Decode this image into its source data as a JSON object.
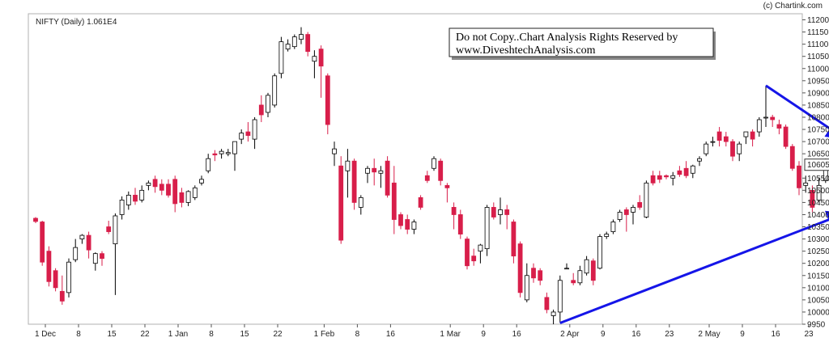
{
  "header": {
    "credit": "(c) Chartink.com",
    "title": "NIFTY (Daily) 1.061E4"
  },
  "watermark": {
    "line1": "Do not Copy..Chart Analysis Rights Reserved by",
    "line2": "www.DiveshtechAnalysis.com"
  },
  "colors": {
    "up_fill": "#ffffff",
    "up_border": "#000000",
    "down_fill": "#d81e4a",
    "arrow": "#1515e8",
    "last_price_box": "#ffffff"
  },
  "chart_data": {
    "type": "candlestick",
    "title": "NIFTY (Daily) 1.061E4",
    "ylim": [
      9950,
      11225
    ],
    "y_ticks": [
      9950,
      10000,
      10050,
      10100,
      10150,
      10200,
      10250,
      10300,
      10350,
      10400,
      10450,
      10500,
      10550,
      10650,
      10700,
      10750,
      10800,
      10850,
      10900,
      10950,
      11000,
      11050,
      11100,
      11150,
      11200
    ],
    "last_price_label": "10605",
    "x_ticks": [
      {
        "label": "1 Dec",
        "index": 0
      },
      {
        "label": "8",
        "index": 5
      },
      {
        "label": "15",
        "index": 10
      },
      {
        "label": "22",
        "index": 15
      },
      {
        "label": "1 Jan",
        "index": 20
      },
      {
        "label": "8",
        "index": 25
      },
      {
        "label": "15",
        "index": 30
      },
      {
        "label": "22",
        "index": 35
      },
      {
        "label": "1 Feb",
        "index": 42
      },
      {
        "label": "8",
        "index": 47
      },
      {
        "label": "16",
        "index": 52
      },
      {
        "label": "1 Mar",
        "index": 61
      },
      {
        "label": "9",
        "index": 66
      },
      {
        "label": "16",
        "index": 71
      },
      {
        "label": "2 Apr",
        "index": 79
      },
      {
        "label": "9",
        "index": 84
      },
      {
        "label": "16",
        "index": 89
      },
      {
        "label": "23",
        "index": 94
      },
      {
        "label": "2 May",
        "index": 100
      },
      {
        "label": "9",
        "index": 105
      },
      {
        "label": "16",
        "index": 110
      },
      {
        "label": "23",
        "index": 115
      }
    ],
    "candles": [
      {
        "o": 10385,
        "h": 10390,
        "l": 10365,
        "c": 10372
      },
      {
        "o": 10370,
        "h": 10375,
        "l": 10190,
        "c": 10205
      },
      {
        "o": 10250,
        "h": 10270,
        "l": 10105,
        "c": 10125
      },
      {
        "o": 10170,
        "h": 10180,
        "l": 10085,
        "c": 10100
      },
      {
        "o": 10085,
        "h": 10150,
        "l": 10030,
        "c": 10045
      },
      {
        "o": 10080,
        "h": 10220,
        "l": 10060,
        "c": 10205
      },
      {
        "o": 10215,
        "h": 10300,
        "l": 10205,
        "c": 10265
      },
      {
        "o": 10300,
        "h": 10320,
        "l": 10280,
        "c": 10315
      },
      {
        "o": 10315,
        "h": 10330,
        "l": 10220,
        "c": 10255
      },
      {
        "o": 10200,
        "h": 10245,
        "l": 10170,
        "c": 10240
      },
      {
        "o": 10240,
        "h": 10250,
        "l": 10190,
        "c": 10220
      },
      {
        "o": 10350,
        "h": 10375,
        "l": 10320,
        "c": 10330
      },
      {
        "o": 10280,
        "h": 10405,
        "l": 10070,
        "c": 10395
      },
      {
        "o": 10400,
        "h": 10475,
        "l": 10380,
        "c": 10460
      },
      {
        "o": 10440,
        "h": 10495,
        "l": 10420,
        "c": 10480
      },
      {
        "o": 10480,
        "h": 10510,
        "l": 10440,
        "c": 10455
      },
      {
        "o": 10460,
        "h": 10520,
        "l": 10450,
        "c": 10500
      },
      {
        "o": 10520,
        "h": 10540,
        "l": 10500,
        "c": 10530
      },
      {
        "o": 10545,
        "h": 10560,
        "l": 10490,
        "c": 10515
      },
      {
        "o": 10525,
        "h": 10545,
        "l": 10480,
        "c": 10500
      },
      {
        "o": 10525,
        "h": 10545,
        "l": 10470,
        "c": 10480
      },
      {
        "o": 10545,
        "h": 10560,
        "l": 10410,
        "c": 10445
      },
      {
        "o": 10490,
        "h": 10510,
        "l": 10430,
        "c": 10450
      },
      {
        "o": 10450,
        "h": 10500,
        "l": 10435,
        "c": 10495
      },
      {
        "o": 10470,
        "h": 10520,
        "l": 10460,
        "c": 10510
      },
      {
        "o": 10530,
        "h": 10560,
        "l": 10520,
        "c": 10545
      },
      {
        "o": 10580,
        "h": 10650,
        "l": 10570,
        "c": 10630
      },
      {
        "o": 10650,
        "h": 10665,
        "l": 10620,
        "c": 10645
      },
      {
        "o": 10650,
        "h": 10670,
        "l": 10630,
        "c": 10660
      },
      {
        "o": 10650,
        "h": 10670,
        "l": 10640,
        "c": 10655
      },
      {
        "o": 10650,
        "h": 10700,
        "l": 10580,
        "c": 10700
      },
      {
        "o": 10710,
        "h": 10750,
        "l": 10690,
        "c": 10735
      },
      {
        "o": 10740,
        "h": 10780,
        "l": 10700,
        "c": 10725
      },
      {
        "o": 10710,
        "h": 10800,
        "l": 10670,
        "c": 10790
      },
      {
        "o": 10850,
        "h": 10890,
        "l": 10780,
        "c": 10810
      },
      {
        "o": 10820,
        "h": 10900,
        "l": 10800,
        "c": 10890
      },
      {
        "o": 10850,
        "h": 10980,
        "l": 10840,
        "c": 10970
      },
      {
        "o": 10980,
        "h": 11130,
        "l": 10960,
        "c": 11110
      },
      {
        "o": 11080,
        "h": 11120,
        "l": 11070,
        "c": 11100
      },
      {
        "o": 11090,
        "h": 11140,
        "l": 11080,
        "c": 11130
      },
      {
        "o": 11120,
        "h": 11170,
        "l": 11100,
        "c": 11140
      },
      {
        "o": 11140,
        "h": 11150,
        "l": 11050,
        "c": 11070
      },
      {
        "o": 11030,
        "h": 11075,
        "l": 10960,
        "c": 11050
      },
      {
        "o": 11080,
        "h": 11095,
        "l": 10880,
        "c": 11010
      },
      {
        "o": 10970,
        "h": 10980,
        "l": 10730,
        "c": 10770
      },
      {
        "o": 10650,
        "h": 10700,
        "l": 10600,
        "c": 10670
      },
      {
        "o": 10600,
        "h": 10640,
        "l": 10280,
        "c": 10295
      },
      {
        "o": 10580,
        "h": 10670,
        "l": 10470,
        "c": 10620
      },
      {
        "o": 10620,
        "h": 10630,
        "l": 10420,
        "c": 10450
      },
      {
        "o": 10430,
        "h": 10480,
        "l": 10400,
        "c": 10470
      },
      {
        "o": 10570,
        "h": 10600,
        "l": 10530,
        "c": 10590
      },
      {
        "o": 10590,
        "h": 10630,
        "l": 10520,
        "c": 10575
      },
      {
        "o": 10570,
        "h": 10600,
        "l": 10510,
        "c": 10580
      },
      {
        "o": 10620,
        "h": 10640,
        "l": 10470,
        "c": 10480
      },
      {
        "o": 10530,
        "h": 10600,
        "l": 10320,
        "c": 10380
      },
      {
        "o": 10400,
        "h": 10410,
        "l": 10340,
        "c": 10355
      },
      {
        "o": 10380,
        "h": 10400,
        "l": 10320,
        "c": 10340
      },
      {
        "o": 10340,
        "h": 10380,
        "l": 10320,
        "c": 10370
      },
      {
        "o": 10470,
        "h": 10480,
        "l": 10420,
        "c": 10430
      },
      {
        "o": 10560,
        "h": 10580,
        "l": 10530,
        "c": 10540
      },
      {
        "o": 10590,
        "h": 10640,
        "l": 10580,
        "c": 10630
      },
      {
        "o": 10620,
        "h": 10630,
        "l": 10520,
        "c": 10540
      },
      {
        "o": 10520,
        "h": 10530,
        "l": 10450,
        "c": 10510
      },
      {
        "o": 10430,
        "h": 10450,
        "l": 10340,
        "c": 10400
      },
      {
        "o": 10400,
        "h": 10420,
        "l": 10300,
        "c": 10320
      },
      {
        "o": 10300,
        "h": 10310,
        "l": 10175,
        "c": 10190
      },
      {
        "o": 10230,
        "h": 10260,
        "l": 10190,
        "c": 10210
      },
      {
        "o": 10250,
        "h": 10280,
        "l": 10200,
        "c": 10275
      },
      {
        "o": 10260,
        "h": 10440,
        "l": 10230,
        "c": 10430
      },
      {
        "o": 10430,
        "h": 10450,
        "l": 10380,
        "c": 10390
      },
      {
        "o": 10400,
        "h": 10470,
        "l": 10360,
        "c": 10420
      },
      {
        "o": 10420,
        "h": 10440,
        "l": 10340,
        "c": 10400
      },
      {
        "o": 10370,
        "h": 10380,
        "l": 10200,
        "c": 10230
      },
      {
        "o": 10280,
        "h": 10290,
        "l": 10060,
        "c": 10080
      },
      {
        "o": 10050,
        "h": 10200,
        "l": 10040,
        "c": 10150
      },
      {
        "o": 10180,
        "h": 10200,
        "l": 10120,
        "c": 10140
      },
      {
        "o": 10170,
        "h": 10180,
        "l": 10110,
        "c": 10130
      },
      {
        "o": 10060,
        "h": 10080,
        "l": 9995,
        "c": 10010
      },
      {
        "o": 9985,
        "h": 10010,
        "l": 9950,
        "c": 10000
      },
      {
        "o": 10000,
        "h": 10150,
        "l": 9955,
        "c": 10130
      },
      {
        "o": 10180,
        "h": 10200,
        "l": 10180,
        "c": 10180
      },
      {
        "o": 10130,
        "h": 10160,
        "l": 10110,
        "c": 10120
      },
      {
        "o": 10120,
        "h": 10190,
        "l": 10110,
        "c": 10170
      },
      {
        "o": 10160,
        "h": 10230,
        "l": 10150,
        "c": 10215
      },
      {
        "o": 10210,
        "h": 10220,
        "l": 10110,
        "c": 10130
      },
      {
        "o": 10180,
        "h": 10320,
        "l": 10175,
        "c": 10310
      },
      {
        "o": 10310,
        "h": 10330,
        "l": 10300,
        "c": 10320
      },
      {
        "o": 10330,
        "h": 10380,
        "l": 10320,
        "c": 10370
      },
      {
        "o": 10380,
        "h": 10420,
        "l": 10370,
        "c": 10410
      },
      {
        "o": 10420,
        "h": 10430,
        "l": 10330,
        "c": 10400
      },
      {
        "o": 10410,
        "h": 10440,
        "l": 10360,
        "c": 10430
      },
      {
        "o": 10450,
        "h": 10480,
        "l": 10420,
        "c": 10430
      },
      {
        "o": 10390,
        "h": 10540,
        "l": 10385,
        "c": 10530
      },
      {
        "o": 10560,
        "h": 10580,
        "l": 10520,
        "c": 10530
      },
      {
        "o": 10560,
        "h": 10580,
        "l": 10530,
        "c": 10545
      },
      {
        "o": 10560,
        "h": 10565,
        "l": 10545,
        "c": 10555
      },
      {
        "o": 10550,
        "h": 10575,
        "l": 10520,
        "c": 10560
      },
      {
        "o": 10580,
        "h": 10600,
        "l": 10555,
        "c": 10565
      },
      {
        "o": 10590,
        "h": 10620,
        "l": 10550,
        "c": 10560
      },
      {
        "o": 10570,
        "h": 10605,
        "l": 10550,
        "c": 10600
      },
      {
        "o": 10620,
        "h": 10640,
        "l": 10600,
        "c": 10630
      },
      {
        "o": 10650,
        "h": 10700,
        "l": 10640,
        "c": 10690
      },
      {
        "o": 10700,
        "h": 10720,
        "l": 10680,
        "c": 10700
      },
      {
        "o": 10740,
        "h": 10760,
        "l": 10680,
        "c": 10705
      },
      {
        "o": 10720,
        "h": 10740,
        "l": 10680,
        "c": 10700
      },
      {
        "o": 10700,
        "h": 10710,
        "l": 10620,
        "c": 10640
      },
      {
        "o": 10650,
        "h": 10700,
        "l": 10620,
        "c": 10690
      },
      {
        "o": 10720,
        "h": 10740,
        "l": 10690,
        "c": 10740
      },
      {
        "o": 10740,
        "h": 10750,
        "l": 10680,
        "c": 10710
      },
      {
        "o": 10740,
        "h": 10800,
        "l": 10720,
        "c": 10790
      },
      {
        "o": 10800,
        "h": 10930,
        "l": 10760,
        "c": 10800
      },
      {
        "o": 10800,
        "h": 10810,
        "l": 10760,
        "c": 10790
      },
      {
        "o": 10770,
        "h": 10790,
        "l": 10730,
        "c": 10755
      },
      {
        "o": 10760,
        "h": 10770,
        "l": 10670,
        "c": 10680
      },
      {
        "o": 10680,
        "h": 10690,
        "l": 10580,
        "c": 10590
      },
      {
        "o": 10600,
        "h": 10620,
        "l": 10480,
        "c": 10510
      },
      {
        "o": 10520,
        "h": 10560,
        "l": 10490,
        "c": 10530
      },
      {
        "o": 10500,
        "h": 10520,
        "l": 10410,
        "c": 10430
      },
      {
        "o": 10460,
        "h": 10550,
        "l": 10450,
        "c": 10520
      },
      {
        "o": 10540,
        "h": 10630,
        "l": 10530,
        "c": 10605
      }
    ],
    "trendlines": [
      {
        "from": [
          79,
          9955
        ],
        "to": [
          120,
          10400
        ]
      },
      {
        "from": [
          110,
          10930
        ],
        "to": [
          120,
          10720
        ]
      }
    ]
  }
}
